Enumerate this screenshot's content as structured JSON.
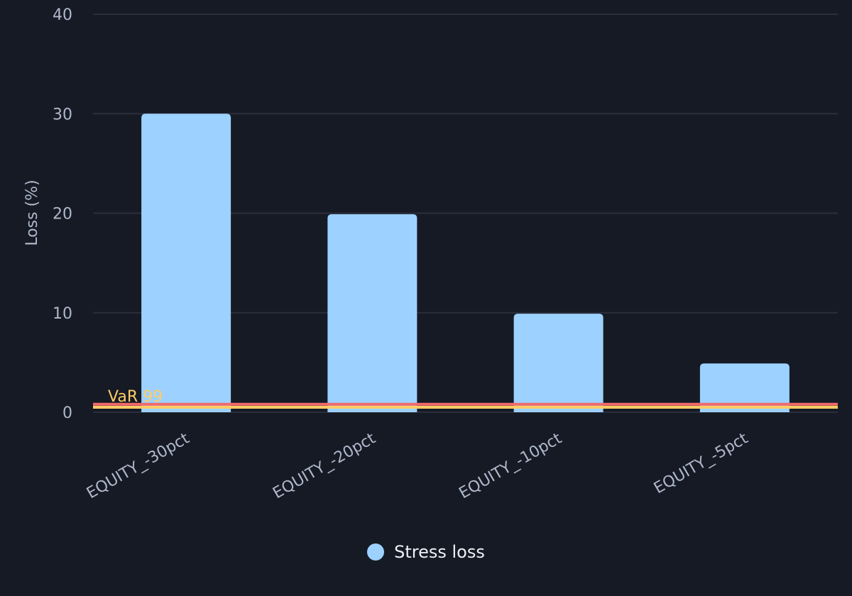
{
  "chart_data": {
    "type": "bar",
    "title": "",
    "xlabel": "",
    "ylabel": "Loss (%)",
    "ylim": [
      0,
      40
    ],
    "yticks": [
      0,
      10,
      20,
      30,
      40
    ],
    "grid": true,
    "legend_position": "bottom",
    "categories": [
      "EQUITY_-30pct",
      "EQUITY_-20pct",
      "EQUITY_-10pct",
      "EQUITY_-5pct"
    ],
    "series": [
      {
        "name": "Stress loss",
        "color": "#9dd1ff",
        "values": [
          30,
          19.9,
          9.9,
          4.9
        ]
      }
    ],
    "reference_lines": [
      {
        "label": "",
        "value": 0.8,
        "color": "#f26b6b"
      },
      {
        "label": "VaR 99",
        "value": 0.5,
        "color": "#ffcc66"
      }
    ]
  },
  "legend": {
    "items": [
      {
        "label": "Stress loss",
        "color": "#9dd1ff"
      }
    ]
  },
  "colors": {
    "background": "#161a24",
    "grid": "#2a2f3d",
    "text": "#aeb8cc"
  }
}
